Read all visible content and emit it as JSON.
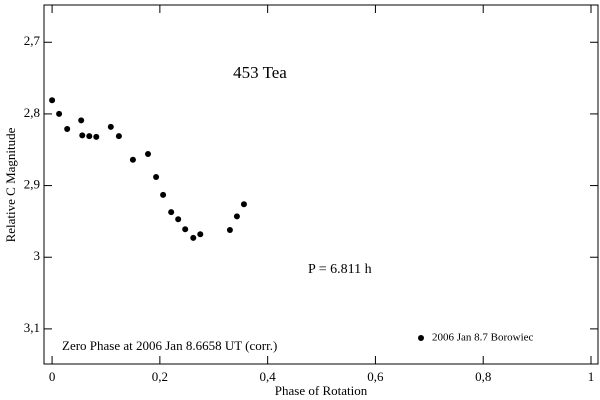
{
  "chart_data": {
    "type": "scatter",
    "title": "453 Tea",
    "xlabel": "Phase of Rotation",
    "ylabel": "Relative C Magnitude",
    "annotations": [
      "P = 6.811 h",
      "Zero Phase at 2006 Jan 8.6658 UT (corr.)"
    ],
    "series": [
      {
        "name": "2006 Jan 8.7 Borowiec",
        "color": "#000000",
        "x": [
          0.0,
          0.013,
          0.028,
          0.054,
          0.056,
          0.069,
          0.082,
          0.109,
          0.124,
          0.15,
          0.178,
          0.193,
          0.206,
          0.221,
          0.234,
          0.247,
          0.262,
          0.275,
          0.33,
          0.343,
          0.356
        ],
        "values": [
          2.781,
          2.8,
          2.821,
          2.809,
          2.83,
          2.831,
          2.832,
          2.818,
          2.831,
          2.864,
          2.856,
          2.888,
          2.913,
          2.937,
          2.947,
          2.961,
          2.973,
          2.968,
          2.962,
          2.943,
          2.926
        ]
      }
    ],
    "xlim": [
      -0.015,
      1.013
    ],
    "ylim": [
      3.149,
      2.648
    ],
    "xticks": [
      0,
      {
        "value": 0.2,
        "label": "0,2"
      },
      {
        "value": 0.4,
        "label": "0,4"
      },
      {
        "value": 0.6,
        "label": "0,6"
      },
      {
        "value": 0.8,
        "label": "0,8"
      },
      1
    ],
    "yticks": [
      {
        "value": 2.7,
        "label": "2,7"
      },
      {
        "value": 2.8,
        "label": "2,8"
      },
      {
        "value": 2.9,
        "label": "2,9"
      },
      3,
      {
        "value": 3.1,
        "label": "3,1"
      }
    ],
    "legend": "lower right"
  }
}
